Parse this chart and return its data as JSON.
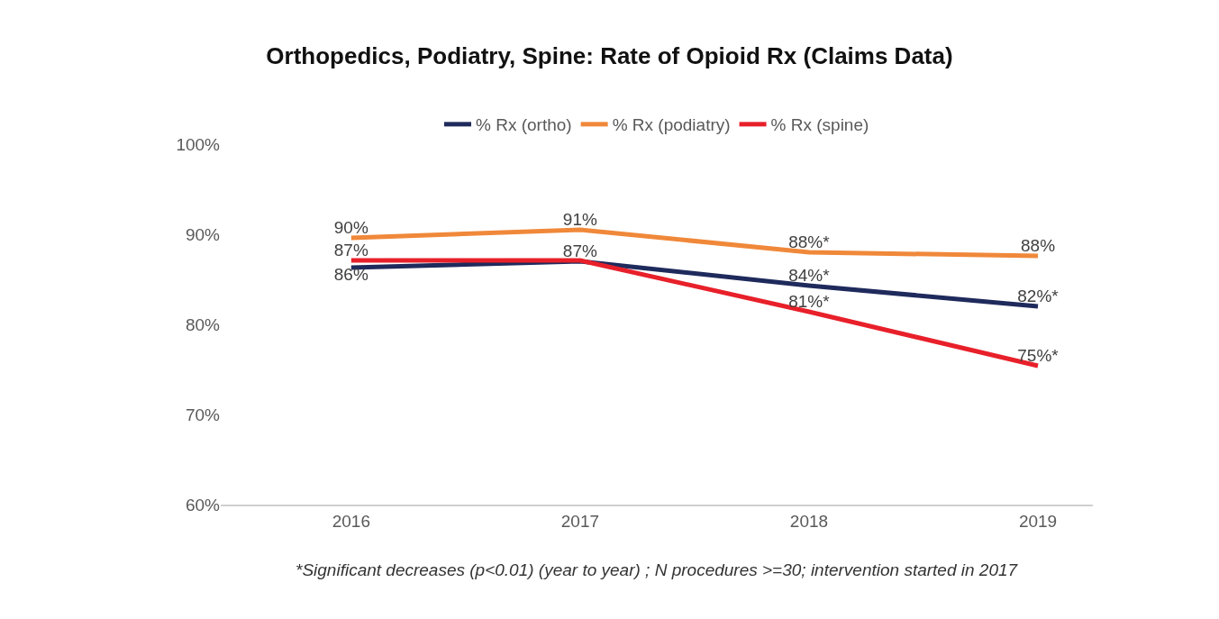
{
  "chart_data": {
    "type": "line",
    "title": "Orthopedics, Podiatry, Spine: Rate of Opioid Rx (Claims Data)",
    "categories": [
      "2016",
      "2017",
      "2018",
      "2019"
    ],
    "series": [
      {
        "name": "% Rx (ortho)",
        "color": "#1f2a5c",
        "values": [
          86.3,
          87.0,
          84.3,
          82.0
        ],
        "value_labels": [
          "86%",
          "87%",
          "84%*",
          "82%*"
        ]
      },
      {
        "name": "% Rx (podiatry)",
        "color": "#f0883a",
        "values": [
          89.6,
          90.5,
          88.0,
          87.6
        ],
        "value_labels": [
          "90%",
          "91%",
          "88%*",
          "88%"
        ]
      },
      {
        "name": "% Rx (spine)",
        "color": "#e8202a",
        "values": [
          87.1,
          87.1,
          81.4,
          75.4
        ],
        "value_labels": [
          "87%",
          null,
          "81%*",
          "75%*"
        ]
      }
    ],
    "ylim": [
      60,
      100
    ],
    "yticks": [
      {
        "value": 60,
        "label": "60%"
      },
      {
        "value": 70,
        "label": "70%"
      },
      {
        "value": 80,
        "label": "80%"
      },
      {
        "value": 90,
        "label": "90%"
      },
      {
        "value": 100,
        "label": "100%"
      }
    ],
    "legend": "top",
    "marker": "none",
    "line_style": "solid",
    "annotations": [
      "*Significant decreases (p<0.01) (year to year) ; N procedures >=30; intervention started in 2017"
    ]
  }
}
